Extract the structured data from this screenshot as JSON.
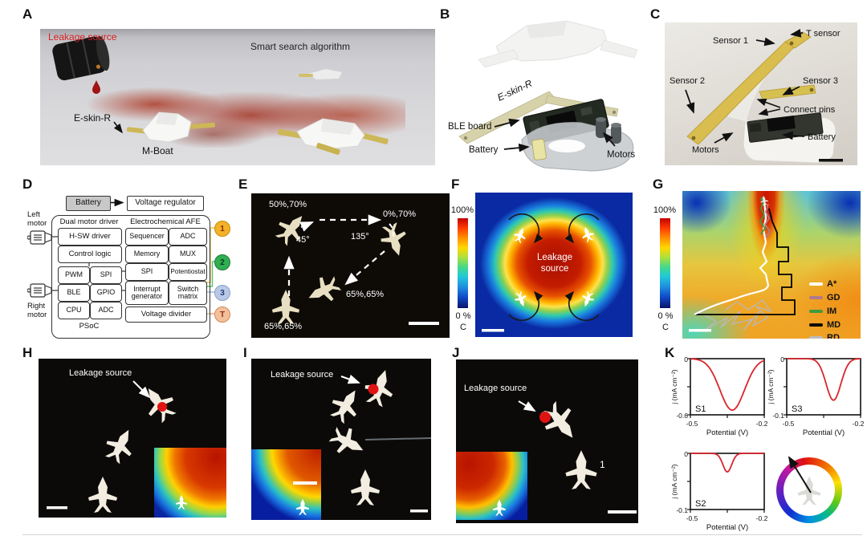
{
  "figure": {
    "panels": {
      "a": "A",
      "b": "B",
      "c": "C",
      "d": "D",
      "e": "E",
      "f": "F",
      "g": "G",
      "h": "H",
      "i": "I",
      "j": "J",
      "k": "K"
    }
  },
  "panelA": {
    "leakage_source": "Leakage source",
    "smart_search": "Smart search algorithm",
    "eskin": "E-skin-R",
    "mboat": "M-Boat"
  },
  "panelB": {
    "eskin": "E-skin-R",
    "ble_board": "BLE board",
    "battery": "Battery",
    "motors": "Motors"
  },
  "panelC": {
    "t_sensor": "T sensor",
    "sensor1": "Sensor 1",
    "sensor2": "Sensor 2",
    "sensor3": "Sensor 3",
    "connect_pins": "Connect pins",
    "motors": "Motors",
    "battery": "Battery"
  },
  "panelD": {
    "battery": "Battery",
    "voltage_regulator": "Voltage regulator",
    "left_motor_line1": "Left",
    "left_motor_line2": "motor",
    "right_motor_line1": "Right",
    "right_motor_line2": "motor",
    "dual_motor_driver": "Dual motor driver",
    "hsw_driver": "H-SW driver",
    "control_logic": "Control logic",
    "afe_title": "Electrochemical AFE",
    "afe_cells": [
      "Sequencer",
      "ADC",
      "Memory",
      "MUX",
      "SPI",
      "Potentiostat",
      "Interrupt generator",
      "Switch matrix"
    ],
    "psoc_cells": [
      "PWM",
      "SPI",
      "BLE",
      "GPIO",
      "CPU",
      "ADC"
    ],
    "psoc": "PSoC",
    "voltage_divider": "Voltage divider",
    "ports": [
      {
        "label": "1",
        "color": "#f2b32b",
        "border": "#c98a00",
        "text": "#8a2f00"
      },
      {
        "label": "2",
        "color": "#2fae52",
        "border": "#1e7a38",
        "text": "#0b3d1e"
      },
      {
        "label": "3",
        "color": "#b9c8e6",
        "border": "#8aa0c8",
        "text": "#23407c"
      },
      {
        "label": "T",
        "color": "#f4c09b",
        "border": "#d08a55",
        "text": "#8a3010"
      }
    ]
  },
  "panelE": {
    "pos_top_left": "50%,70%",
    "pos_top_right": "0%,70%",
    "angle_left": "45°",
    "angle_right": "135°",
    "pos_mid": "65%,65%",
    "pos_bottom": "65%,65%"
  },
  "panelF": {
    "cbar_top": "100%",
    "cbar_bottom": "0 %",
    "cbar_unit": "C",
    "center_label": "Leakage source"
  },
  "panelG": {
    "cbar_top": "100%",
    "cbar_bottom": "0 %",
    "cbar_unit": "C",
    "legend": [
      {
        "label": "A*",
        "color": "#ffffff"
      },
      {
        "label": "GD",
        "color": "#b07a8a"
      },
      {
        "label": "IM",
        "color": "#3f9b3f"
      },
      {
        "label": "MD",
        "color": "#0a0a0a"
      },
      {
        "label": "RD",
        "color": "#bcbcbc"
      }
    ]
  },
  "panelH": {
    "leakage_source": "Leakage source"
  },
  "panelI": {
    "leakage_source": "Leakage source"
  },
  "panelJ": {
    "leakage_source": "Leakage source",
    "boat_number": "1"
  },
  "panelK": {
    "chart_data": [
      {
        "type": "line",
        "label": "S1",
        "xlabel": "Potential (V)",
        "ylabel": "j (mA cm⁻²)",
        "xlim": [
          -0.5,
          -0.2
        ],
        "ylim": [
          0,
          -0.6
        ],
        "xticks": [
          "-0.5",
          "-0.2"
        ],
        "yticks": [
          "0",
          "-0.6"
        ],
        "peak": {
          "center": -0.33,
          "depth": -0.55,
          "sigma": 0.05
        },
        "line_color": "#d8262c"
      },
      {
        "type": "line",
        "label": "S3",
        "xlabel": "Potential (V)",
        "ylabel": "j (mA cm⁻²)",
        "xlim": [
          -0.5,
          -0.2
        ],
        "ylim": [
          0,
          -0.1
        ],
        "xticks": [
          "-0.5",
          "-0.2"
        ],
        "yticks": [
          "0",
          "-0.1"
        ],
        "peak": {
          "center": -0.31,
          "depth": -0.074,
          "sigma": 0.03
        },
        "line_color": "#d8262c"
      },
      {
        "type": "line",
        "label": "S2",
        "xlabel": "Potential (V)",
        "ylabel": "j (mA cm⁻²)",
        "xlim": [
          -0.5,
          -0.2
        ],
        "ylim": [
          0,
          -0.1
        ],
        "xticks": [
          "-0.5",
          "-0.2"
        ],
        "yticks": [
          "0",
          "-0.1"
        ],
        "peak": {
          "center": -0.35,
          "depth": -0.033,
          "sigma": 0.018
        },
        "line_color": "#d8262c"
      }
    ]
  }
}
